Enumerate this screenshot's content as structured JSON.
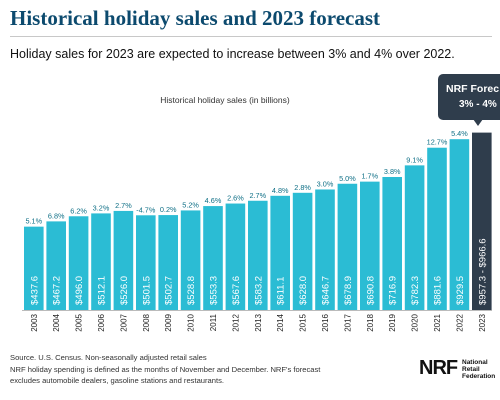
{
  "header": {
    "title": "Historical holiday sales and 2023 forecast",
    "subtitle": "Holiday sales for 2023 are expected to increase between 3% and 4% over 2022."
  },
  "forecast_callout": {
    "line1": "NRF Forec",
    "line2": "3% - 4%",
    "color": "#2f3d4c"
  },
  "chart_data": {
    "type": "bar",
    "title": "Historical holiday sales (in billions)",
    "categories": [
      "2003",
      "2004",
      "2005",
      "2006",
      "2007",
      "2008",
      "2009",
      "2010",
      "2011",
      "2012",
      "2013",
      "2014",
      "2015",
      "2016",
      "2017",
      "2018",
      "2019",
      "2020",
      "2021",
      "2022",
      "2023"
    ],
    "values": [
      437.6,
      467.2,
      496.0,
      512.1,
      526.0,
      501.5,
      502.7,
      528.8,
      553.3,
      567.6,
      583.2,
      611.1,
      628.0,
      646.7,
      678.9,
      690.8,
      716.9,
      782.3,
      881.6,
      929.5,
      966.6
    ],
    "value_labels": [
      "$437.6",
      "$467.2",
      "$496.0",
      "$512.1",
      "$526.0",
      "$501.5",
      "$502.7",
      "$528.8",
      "$553.3",
      "$567.6",
      "$583.2",
      "$611.1",
      "$628.0",
      "$646.7",
      "$678.9",
      "$690.8",
      "$716.9",
      "$782.3",
      "$881.6",
      "$929.5",
      "$957.3 - $966.6"
    ],
    "growth_labels": [
      "5.1%",
      "6.8%",
      "6.2%",
      "3.2%",
      "2.7%",
      "-4.7%",
      "0.2%",
      "5.2%",
      "4.6%",
      "2.6%",
      "2.7%",
      "4.8%",
      "2.8%",
      "3.0%",
      "5.0%",
      "1.7%",
      "3.8%",
      "9.1%",
      "12.7%",
      "5.4%",
      ""
    ],
    "bar_color": "#2bbcd4",
    "forecast_bar_color": "#2f3d4c",
    "growth_color": "#0e6f86",
    "ylim": [
      0,
      1000
    ]
  },
  "footnotes": {
    "source": "Source. U.S. Census. Non-seasonally adjusted retail sales",
    "definition_1": "NRF holiday spending is defined as the months of November and December. NRF's forecast",
    "definition_2": "excludes automobile dealers, gasoline stations and restaurants."
  },
  "logo": {
    "mark": "NRF",
    "line1": "National",
    "line2": "Retail",
    "line3": "Federation"
  }
}
